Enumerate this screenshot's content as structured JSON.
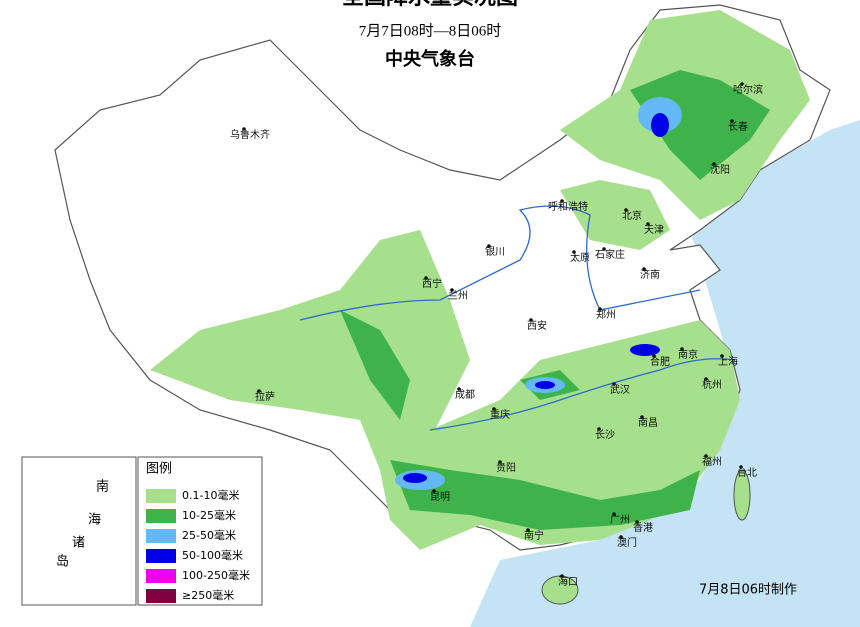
{
  "header": {
    "title": "全国降水量实况图",
    "period": "7月7日08时—8日06时",
    "issuer": "中央气象台"
  },
  "cities": [
    "乌鲁木齐",
    "哈尔滨",
    "长春",
    "沈阳",
    "呼和浩特",
    "北京",
    "天津",
    "银川",
    "太原",
    "石家庄",
    "济南",
    "西宁",
    "兰州",
    "郑州",
    "西安",
    "合肥",
    "南京",
    "上海",
    "成都",
    "武汉",
    "杭州",
    "拉萨",
    "重庆",
    "长沙",
    "南昌",
    "贵阳",
    "福州",
    "台北",
    "昆明",
    "南宁",
    "广州",
    "香港",
    "澳门",
    "海口"
  ],
  "inset": {
    "chars": [
      "南",
      "海",
      "诸",
      "岛"
    ]
  },
  "legend": {
    "title": "图例",
    "items": [
      {
        "label": "0.1-10毫米",
        "color": "#a6e08c"
      },
      {
        "label": "10-25毫米",
        "color": "#3db34a"
      },
      {
        "label": "25-50毫米",
        "color": "#63b8f5"
      },
      {
        "label": "50-100毫米",
        "color": "#0000e6"
      },
      {
        "label": "100-250毫米",
        "color": "#f000f0"
      },
      {
        "label": "≥250毫米",
        "color": "#800040"
      }
    ]
  },
  "footer": "7月8日06时制作"
}
